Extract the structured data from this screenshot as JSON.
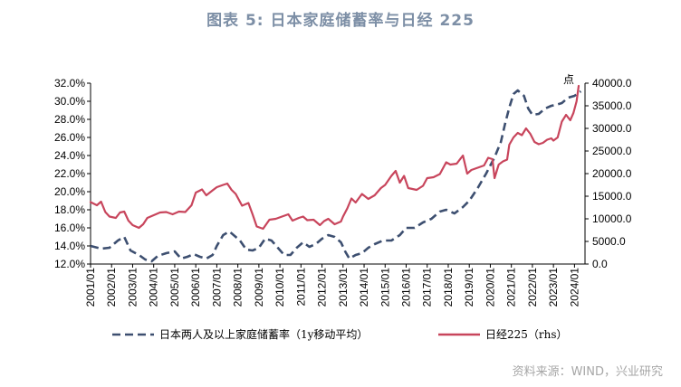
{
  "title": "图表 5:  日本家庭储蓄率与日经 225",
  "source": "资料来源：WIND，兴业研究",
  "chart_data": {
    "type": "line",
    "right_unit": "点",
    "left_axis": {
      "ylim": [
        12,
        32
      ],
      "ticks": [
        "12.0%",
        "14.0%",
        "16.0%",
        "18.0%",
        "20.0%",
        "22.0%",
        "24.0%",
        "26.0%",
        "28.0%",
        "30.0%",
        "32.0%"
      ]
    },
    "right_axis": {
      "ylim": [
        0,
        40000
      ],
      "ticks": [
        "0.0",
        "5000.0",
        "10000.0",
        "15000.0",
        "20000.0",
        "25000.0",
        "30000.0",
        "35000.0",
        "40000.0"
      ]
    },
    "x_ticks": [
      "2001/01",
      "2002/01",
      "2003/01",
      "2004/01",
      "2005/01",
      "2006/01",
      "2007/01",
      "2008/01",
      "2009/01",
      "2010/01",
      "2011/01",
      "2012/01",
      "2013/01",
      "2014/01",
      "2015/01",
      "2016/01",
      "2017/01",
      "2018/01",
      "2019/01",
      "2020/01",
      "2021/01",
      "2022/01",
      "2023/01",
      "2024/01"
    ],
    "series": [
      {
        "name": "日本两人及以上家庭储蓄率（1y移动平均）",
        "axis": "left",
        "color": "#3d4f70",
        "dash": true,
        "points": [
          [
            2001.0,
            14.0
          ],
          [
            2001.5,
            13.7
          ],
          [
            2001.9,
            13.8
          ],
          [
            2002.3,
            14.6
          ],
          [
            2002.6,
            15.0
          ],
          [
            2002.9,
            13.5
          ],
          [
            2003.3,
            13.0
          ],
          [
            2003.6,
            12.5
          ],
          [
            2003.9,
            12.3
          ],
          [
            2004.2,
            12.9
          ],
          [
            2004.6,
            13.2
          ],
          [
            2005.0,
            13.4
          ],
          [
            2005.3,
            12.6
          ],
          [
            2005.6,
            12.8
          ],
          [
            2005.9,
            13.1
          ],
          [
            2006.2,
            12.8
          ],
          [
            2006.5,
            12.6
          ],
          [
            2006.8,
            13.0
          ],
          [
            2007.0,
            14.0
          ],
          [
            2007.3,
            15.2
          ],
          [
            2007.6,
            15.6
          ],
          [
            2007.9,
            15.0
          ],
          [
            2008.1,
            14.6
          ],
          [
            2008.4,
            13.6
          ],
          [
            2008.7,
            13.5
          ],
          [
            2009.0,
            13.8
          ],
          [
            2009.3,
            14.8
          ],
          [
            2009.6,
            14.6
          ],
          [
            2009.9,
            13.8
          ],
          [
            2010.2,
            13.0
          ],
          [
            2010.5,
            13.0
          ],
          [
            2010.8,
            13.8
          ],
          [
            2011.1,
            14.4
          ],
          [
            2011.4,
            13.9
          ],
          [
            2011.7,
            14.2
          ],
          [
            2012.0,
            14.8
          ],
          [
            2012.3,
            15.2
          ],
          [
            2012.6,
            15.0
          ],
          [
            2012.9,
            14.4
          ],
          [
            2013.1,
            13.4
          ],
          [
            2013.3,
            12.6
          ],
          [
            2013.6,
            13.0
          ],
          [
            2013.9,
            13.2
          ],
          [
            2014.2,
            13.8
          ],
          [
            2014.5,
            14.2
          ],
          [
            2014.9,
            14.6
          ],
          [
            2015.3,
            14.6
          ],
          [
            2015.7,
            15.2
          ],
          [
            2016.0,
            16.0
          ],
          [
            2016.4,
            16.0
          ],
          [
            2016.8,
            16.6
          ],
          [
            2017.2,
            17.0
          ],
          [
            2017.6,
            17.8
          ],
          [
            2017.9,
            18.0
          ],
          [
            2018.3,
            17.6
          ],
          [
            2018.7,
            18.3
          ],
          [
            2019.0,
            19.0
          ],
          [
            2019.4,
            20.4
          ],
          [
            2019.8,
            22.0
          ],
          [
            2020.2,
            23.8
          ],
          [
            2020.5,
            25.5
          ],
          [
            2020.7,
            27.5
          ],
          [
            2020.9,
            29.3
          ],
          [
            2021.1,
            30.8
          ],
          [
            2021.3,
            31.2
          ],
          [
            2021.6,
            30.6
          ],
          [
            2021.8,
            29.2
          ],
          [
            2022.0,
            28.5
          ],
          [
            2022.3,
            28.6
          ],
          [
            2022.6,
            29.2
          ],
          [
            2022.9,
            29.5
          ],
          [
            2023.1,
            29.6
          ],
          [
            2023.4,
            29.8
          ],
          [
            2023.7,
            30.4
          ],
          [
            2024.0,
            30.6
          ],
          [
            2024.3,
            31.1
          ]
        ]
      },
      {
        "name": "日经225（rhs）",
        "axis": "right",
        "color": "#c8455c",
        "dash": false,
        "points": [
          [
            2001.0,
            13700
          ],
          [
            2001.3,
            13000
          ],
          [
            2001.5,
            13800
          ],
          [
            2001.7,
            11500
          ],
          [
            2001.9,
            10500
          ],
          [
            2002.2,
            10200
          ],
          [
            2002.4,
            11400
          ],
          [
            2002.6,
            11600
          ],
          [
            2002.8,
            9600
          ],
          [
            2003.0,
            8600
          ],
          [
            2003.3,
            8000
          ],
          [
            2003.5,
            8800
          ],
          [
            2003.7,
            10200
          ],
          [
            2004.0,
            10800
          ],
          [
            2004.3,
            11400
          ],
          [
            2004.6,
            11500
          ],
          [
            2004.9,
            11000
          ],
          [
            2005.2,
            11600
          ],
          [
            2005.5,
            11500
          ],
          [
            2005.8,
            13000
          ],
          [
            2006.0,
            15800
          ],
          [
            2006.3,
            16500
          ],
          [
            2006.5,
            15200
          ],
          [
            2006.8,
            16300
          ],
          [
            2007.0,
            17000
          ],
          [
            2007.3,
            17500
          ],
          [
            2007.5,
            17800
          ],
          [
            2007.7,
            16400
          ],
          [
            2007.9,
            15500
          ],
          [
            2008.2,
            12900
          ],
          [
            2008.5,
            13500
          ],
          [
            2008.7,
            11000
          ],
          [
            2008.9,
            8300
          ],
          [
            2009.2,
            7800
          ],
          [
            2009.5,
            9800
          ],
          [
            2009.8,
            10000
          ],
          [
            2010.1,
            10500
          ],
          [
            2010.4,
            11000
          ],
          [
            2010.6,
            9600
          ],
          [
            2010.9,
            10200
          ],
          [
            2011.1,
            10500
          ],
          [
            2011.3,
            9700
          ],
          [
            2011.6,
            9800
          ],
          [
            2011.9,
            8600
          ],
          [
            2012.1,
            9500
          ],
          [
            2012.3,
            10000
          ],
          [
            2012.6,
            8800
          ],
          [
            2012.9,
            9400
          ],
          [
            2013.0,
            10500
          ],
          [
            2013.2,
            12300
          ],
          [
            2013.4,
            14500
          ],
          [
            2013.6,
            13600
          ],
          [
            2013.9,
            15500
          ],
          [
            2014.2,
            14400
          ],
          [
            2014.5,
            15200
          ],
          [
            2014.8,
            16800
          ],
          [
            2015.0,
            17500
          ],
          [
            2015.3,
            19500
          ],
          [
            2015.5,
            20600
          ],
          [
            2015.7,
            18000
          ],
          [
            2015.9,
            19500
          ],
          [
            2016.1,
            16800
          ],
          [
            2016.5,
            16400
          ],
          [
            2016.8,
            17300
          ],
          [
            2017.0,
            19000
          ],
          [
            2017.3,
            19200
          ],
          [
            2017.6,
            19900
          ],
          [
            2017.9,
            22500
          ],
          [
            2018.1,
            22000
          ],
          [
            2018.4,
            22200
          ],
          [
            2018.7,
            24000
          ],
          [
            2018.9,
            20000
          ],
          [
            2019.1,
            20800
          ],
          [
            2019.4,
            21300
          ],
          [
            2019.7,
            21800
          ],
          [
            2019.9,
            23500
          ],
          [
            2020.1,
            23200
          ],
          [
            2020.2,
            19000
          ],
          [
            2020.4,
            22000
          ],
          [
            2020.6,
            22700
          ],
          [
            2020.8,
            23100
          ],
          [
            2020.9,
            26400
          ],
          [
            2021.1,
            28000
          ],
          [
            2021.3,
            29000
          ],
          [
            2021.5,
            28500
          ],
          [
            2021.7,
            30000
          ],
          [
            2021.9,
            28800
          ],
          [
            2022.1,
            27000
          ],
          [
            2022.3,
            26500
          ],
          [
            2022.5,
            26800
          ],
          [
            2022.7,
            27500
          ],
          [
            2022.9,
            27800
          ],
          [
            2023.0,
            27300
          ],
          [
            2023.2,
            28000
          ],
          [
            2023.4,
            31500
          ],
          [
            2023.6,
            33000
          ],
          [
            2023.8,
            31800
          ],
          [
            2023.95,
            33400
          ],
          [
            2024.1,
            36000
          ],
          [
            2024.2,
            39400
          ]
        ]
      }
    ]
  }
}
